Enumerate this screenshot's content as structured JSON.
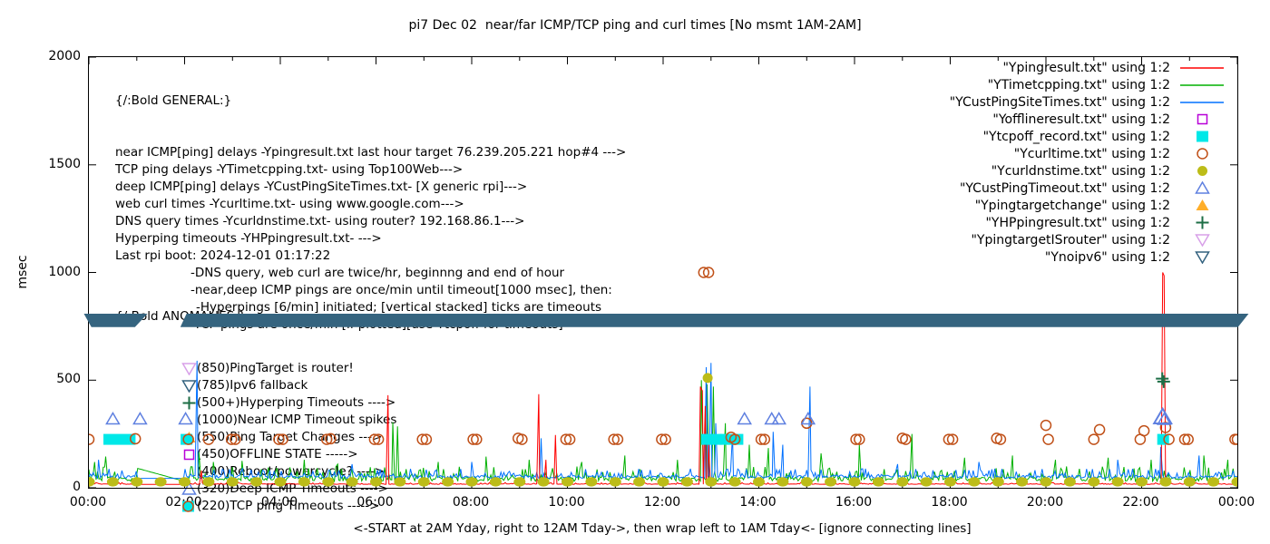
{
  "title": "pi7 Dec 02  near/far ICMP/TCP ping and curl times [No msmt 1AM-2AM]",
  "colors": {
    "near_icmp_red": "#ff0000",
    "tcp_ping_green": "#00b000",
    "deep_icmp_blue": "#0070ff",
    "offline_magenta": "#b800d8",
    "tcpoff_cyan": "#00e8e8",
    "curl_rust": "#c05018",
    "dns_olive": "#bcbc18",
    "cust_timeout_blue": "#5f80e0",
    "target_change_orange": "#ffae2a",
    "hyperping_dark_green": "#1d6e46",
    "target_is_router_violet": "#d8a0e8",
    "noipv6_steel": "#33627f",
    "band_steel": "#35647f"
  },
  "general_block": {
    "header": "{/:Bold GENERAL:}",
    "lines": [
      {
        "text": "near ICMP[ping] delays -Ypingresult.txt last hour target 76.239.205.221 hop#4 --->",
        "indent": 0
      },
      {
        "text": "TCP ping delays -YTimetcpping.txt- using Top100Web--->",
        "indent": 0
      },
      {
        "text": "deep ICMP[ping] delays -YCustPingSiteTimes.txt- [X generic rpi]--->",
        "indent": 0
      },
      {
        "text": "web curl times -Ycurltime.txt- using www.google.com--->",
        "indent": 0
      },
      {
        "text": "DNS query times -Ycurldnstime.txt- using router? 192.168.86.1--->",
        "indent": 0
      },
      {
        "text": "Hyperping timeouts -YHPpingresult.txt- --->",
        "indent": 0
      },
      {
        "text": "Last rpi boot: 2024-12-01 01:17:22",
        "indent": 0
      },
      {
        "text": "-DNS query, web curl are twice/hr, beginnng and end of hour",
        "indent": 1
      },
      {
        "text": "-near,deep ICMP pings are once/min until timeout[1000 msec], then:",
        "indent": 1
      },
      {
        "text": "-Hyperpings [6/min] initiated; [vertical stacked] ticks are timeouts",
        "indent": 2
      },
      {
        "text": "-TCP pings are once/min [if plotted][use Ytcpoff for timeouts]",
        "indent": 1
      }
    ]
  },
  "anomalies_block": {
    "header": "{/:Bold ANOMALIES:}",
    "items": [
      {
        "marker": "open-down-triangle",
        "color": "#d8a0e8",
        "text": "(850)PingTarget is router!"
      },
      {
        "marker": "open-down-triangle",
        "color": "#33627f",
        "text": "(785)Ipv6 fallback"
      },
      {
        "marker": "plus",
        "color": "#1d6e46",
        "text": "(500+)Hyperping Timeouts ---->"
      },
      {
        "marker": "none",
        "color": "",
        "text": "(1000)Near ICMP Timeout spikes"
      },
      {
        "marker": "filled-up-triangle",
        "color": "#ffae2a",
        "text": "(550)Ping Target Changes --->"
      },
      {
        "marker": "open-square",
        "color": "#b800d8",
        "text": "(450)OFFLINE STATE ----->"
      },
      {
        "marker": "none",
        "color": "",
        "text": "(400)Reboot/powercycle? ---->"
      },
      {
        "marker": "open-up-triangle",
        "color": "#5f80e0",
        "text": "(320)Deep ICMP Timeouts ---->"
      },
      {
        "marker": "combo-square-circle",
        "color": "#00e8e8",
        "color2": "#c05018",
        "text": "(220)TCP ping Timeouts ----->"
      }
    ]
  },
  "legend": {
    "entries": [
      {
        "label": "\"Ypingresult.txt\" using 1:2",
        "marker": "line",
        "color": "#ff0000"
      },
      {
        "label": "\"YTimetcpping.txt\" using 1:2",
        "marker": "line",
        "color": "#00b000"
      },
      {
        "label": "\"YCustPingSiteTimes.txt\" using 1:2",
        "marker": "line",
        "color": "#0070ff"
      },
      {
        "label": "\"Yofflineresult.txt\" using 1:2",
        "marker": "open-square",
        "color": "#b800d8"
      },
      {
        "label": "\"Ytcpoff_record.txt\" using 1:2",
        "marker": "filled-square",
        "color": "#00e8e8"
      },
      {
        "label": "\"Ycurltime.txt\" using 1:2",
        "marker": "open-circle",
        "color": "#c05018"
      },
      {
        "label": "\"Ycurldnstime.txt\" using 1:2",
        "marker": "filled-circle",
        "color": "#bcbc18"
      },
      {
        "label": "\"YCustPingTimeout.txt\" using 1:2",
        "marker": "open-up-triangle",
        "color": "#5f80e0"
      },
      {
        "label": "\"Ypingtargetchange\" using 1:2",
        "marker": "filled-up-triangle",
        "color": "#ffae2a"
      },
      {
        "label": "\"YHPpingresult.txt\" using 1:2",
        "marker": "plus",
        "color": "#1d6e46"
      },
      {
        "label": "\"YpingtargetISrouter\" using 1:2",
        "marker": "open-down-triangle",
        "color": "#d8a0e8"
      },
      {
        "label": "\"Ynoipv6\" using 1:2",
        "marker": "open-down-triangle",
        "color": "#33627f"
      }
    ]
  },
  "chart_data": {
    "type": "line",
    "title": "pi7 Dec 02  near/far ICMP/TCP ping and curl times [No msmt 1AM-2AM]",
    "xlabel": "<-START at 2AM Yday, right to 12AM Tday->, then wrap left to 1AM Tday<- [ignore connecting lines]",
    "ylabel": "msec",
    "xlim_hours": [
      0,
      24
    ],
    "ylim": [
      0,
      2000
    ],
    "y_ticks": [
      0,
      500,
      1000,
      1500,
      2000
    ],
    "x_tick_labels": [
      "00:00",
      "02:00",
      "04:00",
      "06:00",
      "08:00",
      "10:00",
      "12:00",
      "14:00",
      "16:00",
      "18:00",
      "20:00",
      "22:00",
      "00:00"
    ],
    "grid": false,
    "legend_position": "top-right",
    "noise_seed": 20241202,
    "no_measurement_window_hours": [
      1,
      2
    ],
    "line_series": [
      {
        "name": "Ypingresult.txt",
        "color": "#ff0000",
        "baseline": 16,
        "noise_amp": 8,
        "spikes": [
          [
            2.35,
            80
          ],
          [
            6.25,
            430
          ],
          [
            9.4,
            435
          ],
          [
            9.55,
            130
          ],
          [
            9.75,
            245
          ],
          [
            12.78,
            470
          ],
          [
            12.82,
            450
          ],
          [
            12.88,
            380
          ],
          [
            12.95,
            200
          ],
          [
            22.44,
            1000
          ],
          [
            22.47,
            985
          ]
        ]
      },
      {
        "name": "YTimetcpping.txt",
        "color": "#00b000",
        "baseline": 30,
        "noise_amp": 70,
        "gap_points": [
          [
            1.02,
            90
          ],
          [
            2.0,
            30
          ]
        ],
        "spikes": [
          [
            0.12,
            120
          ],
          [
            0.35,
            145
          ],
          [
            2.3,
            165
          ],
          [
            2.6,
            120
          ],
          [
            3.2,
            125
          ],
          [
            4.5,
            130
          ],
          [
            5.2,
            110
          ],
          [
            6.35,
            305
          ],
          [
            6.45,
            285
          ],
          [
            7.3,
            120
          ],
          [
            8.3,
            145
          ],
          [
            9.2,
            130
          ],
          [
            10.3,
            120
          ],
          [
            11.2,
            150
          ],
          [
            12.3,
            130
          ],
          [
            12.8,
            500
          ],
          [
            12.92,
            480
          ],
          [
            13.05,
            470
          ],
          [
            13.3,
            300
          ],
          [
            13.8,
            200
          ],
          [
            14.2,
            185
          ],
          [
            15.3,
            160
          ],
          [
            16.1,
            200
          ],
          [
            17.2,
            250
          ],
          [
            18.3,
            140
          ],
          [
            19.3,
            150
          ],
          [
            20.2,
            130
          ],
          [
            21.3,
            140
          ],
          [
            22.2,
            130
          ],
          [
            23.3,
            150
          ],
          [
            23.8,
            130
          ]
        ]
      },
      {
        "name": "YCustPingSiteTimes.txt",
        "color": "#0070ff",
        "baseline": 44,
        "noise_amp": 45,
        "spikes": [
          [
            0.2,
            130
          ],
          [
            2.26,
            590
          ],
          [
            5.5,
            110
          ],
          [
            8.0,
            120
          ],
          [
            9.45,
            230
          ],
          [
            12.9,
            560
          ],
          [
            13.0,
            580
          ],
          [
            13.1,
            300
          ],
          [
            13.45,
            250
          ],
          [
            14.3,
            260
          ],
          [
            14.5,
            200
          ],
          [
            15.07,
            470
          ],
          [
            16.9,
            110
          ],
          [
            18.6,
            120
          ],
          [
            21.5,
            130
          ],
          [
            22.4,
            190
          ],
          [
            23.2,
            150
          ]
        ]
      }
    ],
    "marker_series": [
      {
        "name": "Ytcpoff_record.txt",
        "style": "filled-square",
        "color": "#00e8e8",
        "points": [
          [
            2.04,
            225
          ],
          [
            22.45,
            225
          ]
        ],
        "bars": [
          [
            0.38,
            0.9,
            225
          ],
          [
            12.87,
            13.16,
            225
          ],
          [
            13.26,
            13.6,
            225
          ]
        ]
      },
      {
        "name": "Ycurltime.txt",
        "style": "open-circle",
        "color": "#c05018",
        "points": [
          [
            0,
            225
          ],
          [
            0.97,
            228
          ],
          [
            2.08,
            225
          ],
          [
            2.5,
            225
          ],
          [
            2.98,
            225
          ],
          [
            3.06,
            225
          ],
          [
            3.97,
            225
          ],
          [
            4.05,
            225
          ],
          [
            4.97,
            225
          ],
          [
            5.05,
            228
          ],
          [
            5.97,
            225
          ],
          [
            6.05,
            225
          ],
          [
            6.97,
            225
          ],
          [
            7.05,
            225
          ],
          [
            8.03,
            225
          ],
          [
            8.1,
            225
          ],
          [
            8.97,
            230
          ],
          [
            9.05,
            225
          ],
          [
            9.97,
            225
          ],
          [
            10.05,
            225
          ],
          [
            10.97,
            225
          ],
          [
            11.05,
            225
          ],
          [
            11.97,
            225
          ],
          [
            12.05,
            225
          ],
          [
            12.85,
            1000
          ],
          [
            12.95,
            1000
          ],
          [
            13.42,
            235
          ],
          [
            13.5,
            225
          ],
          [
            14.05,
            225
          ],
          [
            14.12,
            225
          ],
          [
            15.0,
            300
          ],
          [
            16.03,
            225
          ],
          [
            16.1,
            225
          ],
          [
            17.0,
            230
          ],
          [
            17.07,
            225
          ],
          [
            17.97,
            225
          ],
          [
            18.05,
            225
          ],
          [
            18.97,
            230
          ],
          [
            19.05,
            225
          ],
          [
            20.0,
            290
          ],
          [
            20.05,
            225
          ],
          [
            21.0,
            225
          ],
          [
            21.12,
            270
          ],
          [
            21.97,
            225
          ],
          [
            22.05,
            265
          ],
          [
            22.5,
            280
          ],
          [
            22.57,
            225
          ],
          [
            22.9,
            225
          ],
          [
            22.97,
            225
          ],
          [
            23.95,
            225
          ],
          [
            24.0,
            225
          ]
        ]
      },
      {
        "name": "Ycurldnstime.txt",
        "style": "filled-ellipse",
        "color": "#bcbc18",
        "every_hours": 0.5,
        "value": 28,
        "extra_points": [
          [
            12.93,
            510
          ]
        ]
      },
      {
        "name": "YCustPingTimeout.txt",
        "style": "open-up-triangle",
        "color": "#5f80e0",
        "points": [
          [
            0.5,
            320
          ],
          [
            1.07,
            320
          ],
          [
            2.02,
            320
          ],
          [
            13.7,
            320
          ],
          [
            14.27,
            320
          ],
          [
            14.42,
            320
          ],
          [
            15.03,
            320
          ],
          [
            22.44,
            330,
            "big"
          ],
          [
            22.47,
            318
          ]
        ]
      },
      {
        "name": "YHPpingresult.txt",
        "style": "plus",
        "color": "#1d6e46",
        "points": [
          [
            22.43,
            507
          ],
          [
            22.46,
            493
          ]
        ]
      },
      {
        "name": "Yofflineresult.txt",
        "style": "open-square",
        "color": "#b800d8",
        "points": []
      },
      {
        "name": "Ypingtargetchange",
        "style": "filled-up-triangle",
        "color": "#ffae2a",
        "points": []
      },
      {
        "name": "YpingtargetISrouter",
        "style": "open-down-triangle",
        "color": "#d8a0e8",
        "points": []
      },
      {
        "name": "Ynoipv6",
        "style": "open-down-triangle",
        "color": "#33627f",
        "points": []
      }
    ],
    "band": {
      "color": "#35647f",
      "y_range_msec": [
        742,
        806
      ],
      "segments_hours": [
        [
          -0.09,
          1.25
        ],
        [
          1.93,
          24.26
        ]
      ]
    }
  }
}
